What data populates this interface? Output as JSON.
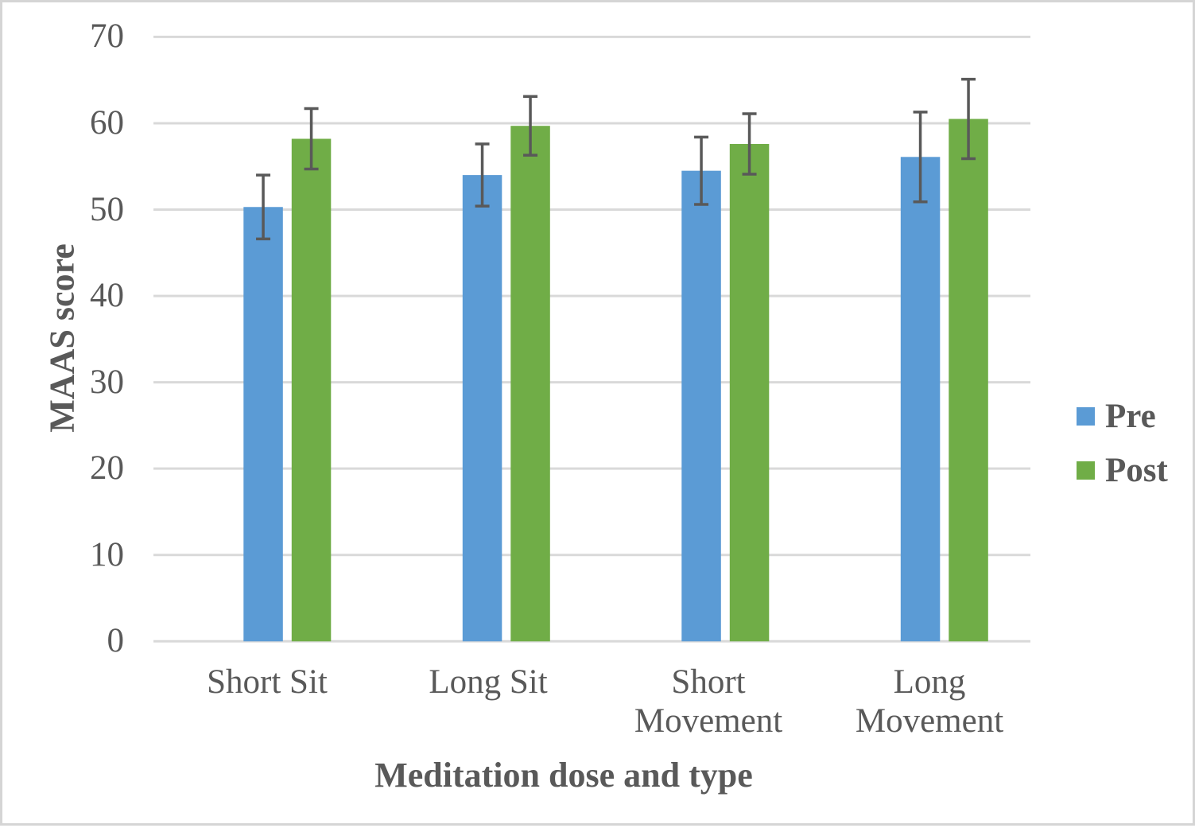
{
  "figure": {
    "background": "#ffffff",
    "border_color": "#d5d5d5"
  },
  "chart_data": {
    "type": "bar",
    "title": "",
    "xlabel": "Meditation dose and type",
    "ylabel": "MAAS score",
    "categories": [
      "Short Sit",
      "Long Sit",
      "Short Movement",
      "Long Movement"
    ],
    "series": [
      {
        "name": "Pre",
        "color": "#5B9BD5",
        "values": [
          50.3,
          54.0,
          54.5,
          56.1
        ],
        "errors": [
          3.7,
          3.6,
          3.9,
          5.2
        ]
      },
      {
        "name": "Post",
        "color": "#70AD47",
        "values": [
          58.2,
          59.7,
          57.6,
          60.5
        ],
        "errors": [
          3.5,
          3.4,
          3.5,
          4.6
        ]
      }
    ],
    "ylim": [
      0,
      70
    ],
    "yticks": [
      0,
      10,
      20,
      30,
      40,
      50,
      60,
      70
    ],
    "grid": true,
    "legend_position": "right",
    "gridline_color": "#D9D9D9",
    "axis_line_color": "#D9D9D9",
    "error_bar_color": "#595959",
    "text_color": "#595959"
  }
}
